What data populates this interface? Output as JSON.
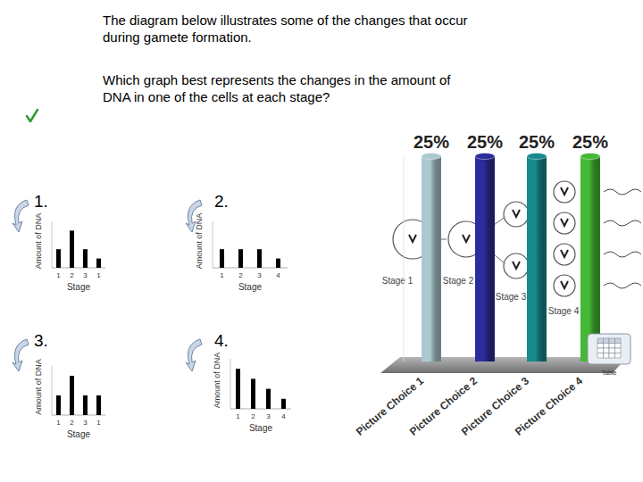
{
  "header": {
    "intro": [
      "The diagram below illustrates some of the changes that occur",
      "during gamete formation."
    ],
    "question": [
      "Which graph best represents the changes in the amount of",
      "DNA in one of the cells at each stage?"
    ]
  },
  "diagram": {
    "stages": [
      "Stage 1",
      "Stage 2",
      "Stage 3",
      "Stage 4"
    ]
  },
  "table_button": "Table",
  "chart_data": [
    {
      "type": "bar",
      "title": "1.",
      "x_label": "Stage",
      "y_label": "Amount of DNA",
      "categories": [
        "1",
        "2",
        "3",
        "1"
      ],
      "values": [
        2,
        4,
        2,
        1
      ],
      "color": "#000000",
      "ylim": [
        0,
        5
      ],
      "tick_labels": "x"
    },
    {
      "type": "bar",
      "title": "2.",
      "x_label": "Stage",
      "y_label": "Amount of DNA",
      "categories": [
        "1",
        "2",
        "3",
        "4"
      ],
      "values": [
        2,
        2,
        2,
        1
      ],
      "color": "#000000",
      "ylim": [
        0,
        5
      ],
      "tick_labels": "x"
    },
    {
      "type": "bar",
      "title": "3.",
      "x_label": "Stage",
      "y_label": "Amount of DNA",
      "categories": [
        "1",
        "2",
        "3",
        "1"
      ],
      "values": [
        2,
        4,
        2,
        2
      ],
      "color": "#000000",
      "ylim": [
        0,
        5
      ],
      "tick_labels": "x"
    },
    {
      "type": "bar",
      "title": "4.",
      "x_label": "Stage",
      "y_label": "Amount of DNA",
      "categories": [
        "1",
        "2",
        "3",
        "4"
      ],
      "values": [
        4,
        3,
        2,
        1
      ],
      "color": "#000000",
      "ylim": [
        0,
        5
      ],
      "tick_labels": "x"
    },
    {
      "type": "bar",
      "categories": [
        "Picture Choice 1",
        "Picture Choice 2",
        "Picture Choice 3",
        "Picture Choice 4"
      ],
      "values": [
        25,
        25,
        25,
        25
      ],
      "value_labels": [
        "25%",
        "25%",
        "25%",
        "25%"
      ],
      "colors": [
        "#a9c9cf",
        "#2c2c9c",
        "#17898c",
        "#45b935"
      ],
      "data_labels": true,
      "ylim": [
        0,
        25
      ],
      "tick_labels": "x"
    }
  ]
}
